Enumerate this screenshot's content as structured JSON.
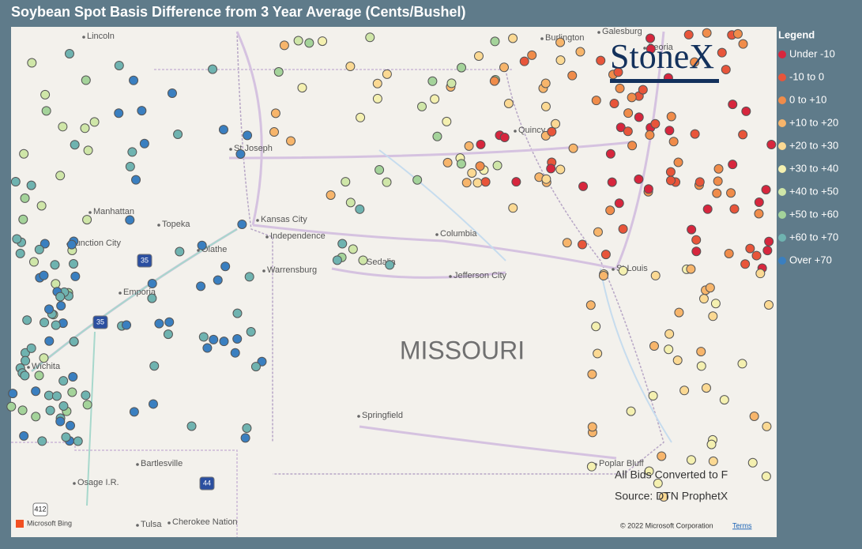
{
  "header": {
    "title": "Soybean Spot Basis Difference from 3 Year Average (Cents/Bushel)"
  },
  "legend": {
    "title": "Legend",
    "items": [
      {
        "label": "Under -10",
        "color": "#d7263d"
      },
      {
        "label": "-10 to 0",
        "color": "#e8553a"
      },
      {
        "label": "0 to +10",
        "color": "#f08c4a"
      },
      {
        "label": "+10 to +20",
        "color": "#f7b56b"
      },
      {
        "label": "+20 to +30",
        "color": "#fbd993"
      },
      {
        "label": "+30 to +40",
        "color": "#f4f0b0"
      },
      {
        "label": "+40 to +50",
        "color": "#cfe6a8"
      },
      {
        "label": "+50 to +60",
        "color": "#a4d39a"
      },
      {
        "label": "+60 to +70",
        "color": "#6fb3b0"
      },
      {
        "label": "Over +70",
        "color": "#3a7fc0"
      }
    ]
  },
  "map": {
    "state_label": "MISSOURI",
    "places": [
      "Lincoln",
      "St Joseph",
      "Manhattan",
      "Topeka",
      "Junction City",
      "Kansas City",
      "Independence",
      "Olathe",
      "Warrensburg",
      "Sedalia",
      "Columbia",
      "Jefferson City",
      "St Louis",
      "Emporia",
      "Wichita",
      "Springfield",
      "Quincy",
      "Burlington",
      "Galesburg",
      "Peoria",
      "Bartlesville",
      "Osage I.R.",
      "Tulsa",
      "Cherokee Nation",
      "Poplar Bluff"
    ],
    "shields": [
      "35",
      "35",
      "44",
      "412"
    ]
  },
  "logo": "StoneX",
  "notes": [
    "All Bids Converted to F",
    "Source: DTN ProphetX"
  ],
  "attribution": {
    "provider": "Microsoft Bing",
    "copyright": "© 2022 Microsoft Corporation",
    "terms": "Terms"
  }
}
